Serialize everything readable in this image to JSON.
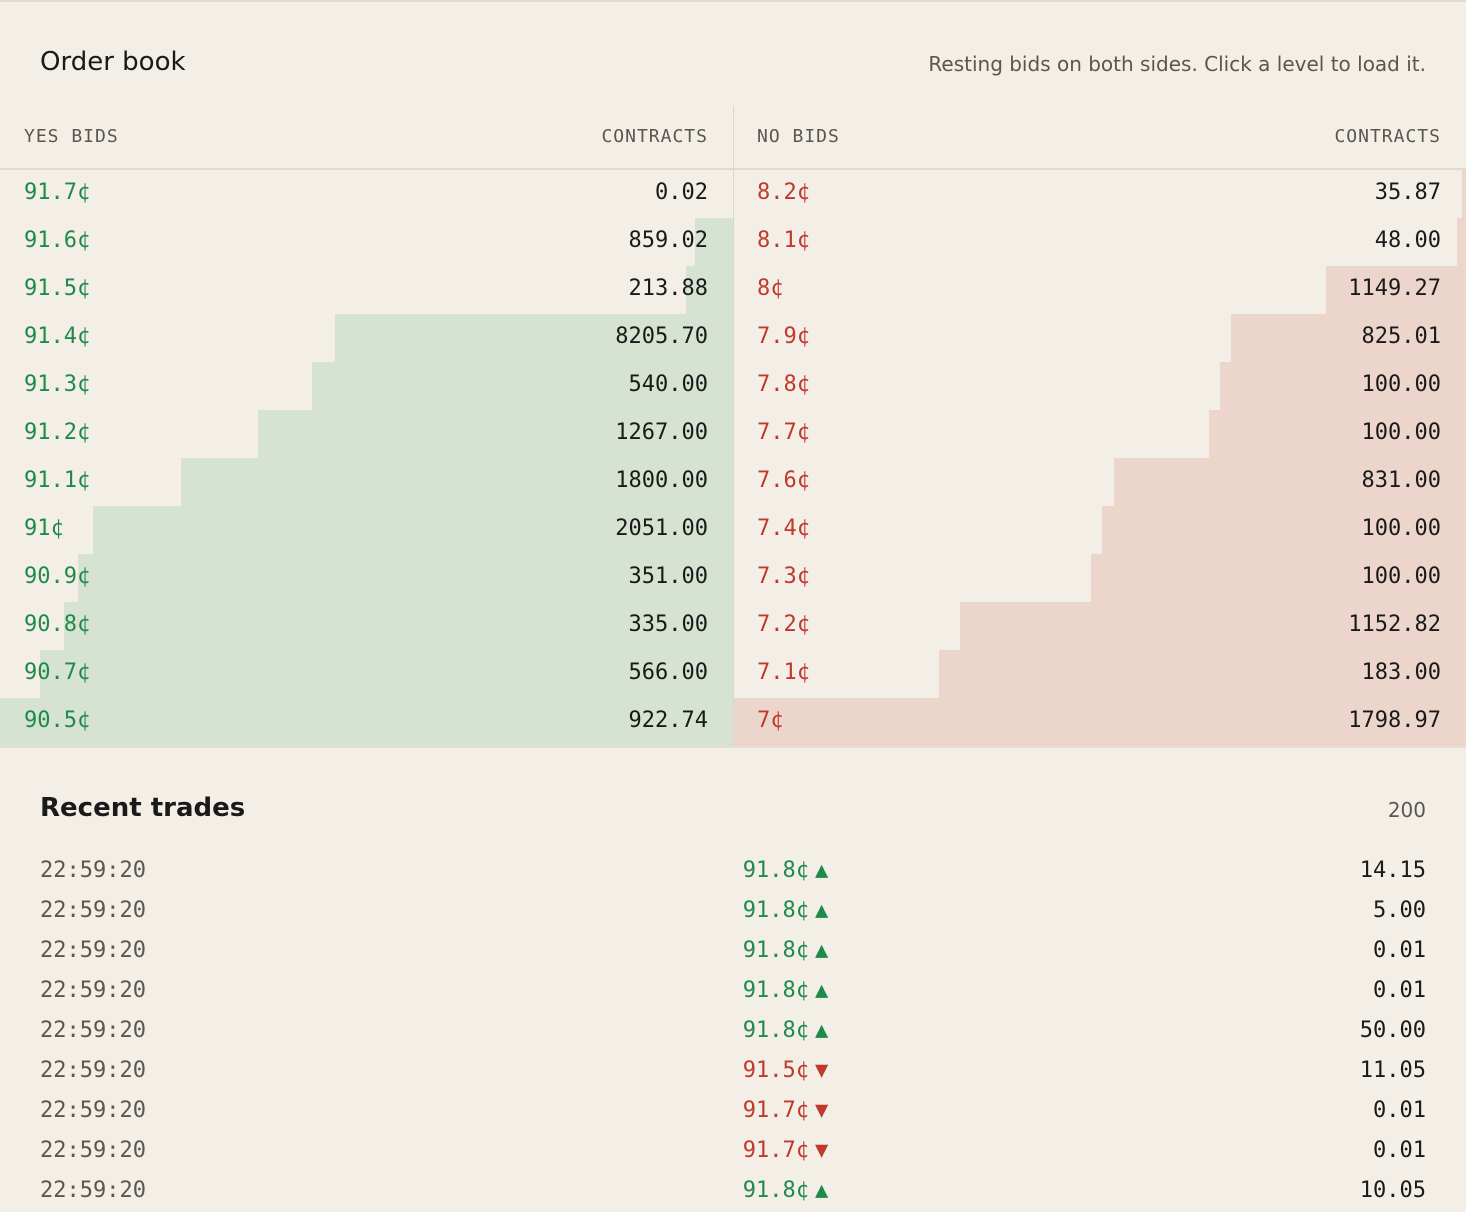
{
  "order_book": {
    "title": "Order book",
    "subtitle": "Resting bids on both sides. Click a level to load it.",
    "yes": {
      "label": "YES BIDS",
      "contracts_label": "CONTRACTS",
      "color": "#1f8a4a",
      "depth_color": "#d6e2d2",
      "levels": [
        {
          "price": "91.7¢",
          "contracts": "0.02",
          "depth": 0.0
        },
        {
          "price": "91.6¢",
          "contracts": "859.02",
          "depth": 0.052
        },
        {
          "price": "91.5¢",
          "contracts": "213.88",
          "depth": 0.064
        },
        {
          "price": "91.4¢",
          "contracts": "8205.70",
          "depth": 0.543
        },
        {
          "price": "91.3¢",
          "contracts": "540.00",
          "depth": 0.574
        },
        {
          "price": "91.2¢",
          "contracts": "1267.00",
          "depth": 0.648
        },
        {
          "price": "91.1¢",
          "contracts": "1800.00",
          "depth": 0.753
        },
        {
          "price": "91¢",
          "contracts": "2051.00",
          "depth": 0.873
        },
        {
          "price": "90.9¢",
          "contracts": "351.00",
          "depth": 0.894
        },
        {
          "price": "90.8¢",
          "contracts": "335.00",
          "depth": 0.913
        },
        {
          "price": "90.7¢",
          "contracts": "566.00",
          "depth": 0.946
        },
        {
          "price": "90.5¢",
          "contracts": "922.74",
          "depth": 1.0
        }
      ]
    },
    "no": {
      "label": "NO BIDS",
      "contracts_label": "CONTRACTS",
      "color": "#c0392b",
      "depth_color": "#ecd6cc",
      "levels": [
        {
          "price": "8.2¢",
          "contracts": "35.87",
          "depth": 0.005
        },
        {
          "price": "8.1¢",
          "contracts": "48.00",
          "depth": 0.012
        },
        {
          "price": "8¢",
          "contracts": "1149.27",
          "depth": 0.191
        },
        {
          "price": "7.9¢",
          "contracts": "825.01",
          "depth": 0.32
        },
        {
          "price": "7.8¢",
          "contracts": "100.00",
          "depth": 0.335
        },
        {
          "price": "7.7¢",
          "contracts": "100.00",
          "depth": 0.351
        },
        {
          "price": "7.6¢",
          "contracts": "831.00",
          "depth": 0.48
        },
        {
          "price": "7.4¢",
          "contracts": "100.00",
          "depth": 0.496
        },
        {
          "price": "7.3¢",
          "contracts": "100.00",
          "depth": 0.511
        },
        {
          "price": "7.2¢",
          "contracts": "1152.82",
          "depth": 0.691
        },
        {
          "price": "7.1¢",
          "contracts": "183.00",
          "depth": 0.719
        },
        {
          "price": "7¢",
          "contracts": "1798.97",
          "depth": 1.0
        }
      ]
    }
  },
  "recent_trades": {
    "title": "Recent trades",
    "count": "200",
    "up_arrow_icon": "triangle-up-icon",
    "down_arrow_icon": "triangle-down-icon",
    "trades": [
      {
        "time": "22:59:20",
        "price": "91.8¢",
        "direction": "up",
        "arrow": "▲",
        "contracts": "14.15"
      },
      {
        "time": "22:59:20",
        "price": "91.8¢",
        "direction": "up",
        "arrow": "▲",
        "contracts": "5.00"
      },
      {
        "time": "22:59:20",
        "price": "91.8¢",
        "direction": "up",
        "arrow": "▲",
        "contracts": "0.01"
      },
      {
        "time": "22:59:20",
        "price": "91.8¢",
        "direction": "up",
        "arrow": "▲",
        "contracts": "0.01"
      },
      {
        "time": "22:59:20",
        "price": "91.8¢",
        "direction": "up",
        "arrow": "▲",
        "contracts": "50.00"
      },
      {
        "time": "22:59:20",
        "price": "91.5¢",
        "direction": "down",
        "arrow": "▼",
        "contracts": "11.05"
      },
      {
        "time": "22:59:20",
        "price": "91.7¢",
        "direction": "down",
        "arrow": "▼",
        "contracts": "0.01"
      },
      {
        "time": "22:59:20",
        "price": "91.7¢",
        "direction": "down",
        "arrow": "▼",
        "contracts": "0.01"
      },
      {
        "time": "22:59:20",
        "price": "91.8¢",
        "direction": "up",
        "arrow": "▲",
        "contracts": "10.05"
      }
    ]
  }
}
